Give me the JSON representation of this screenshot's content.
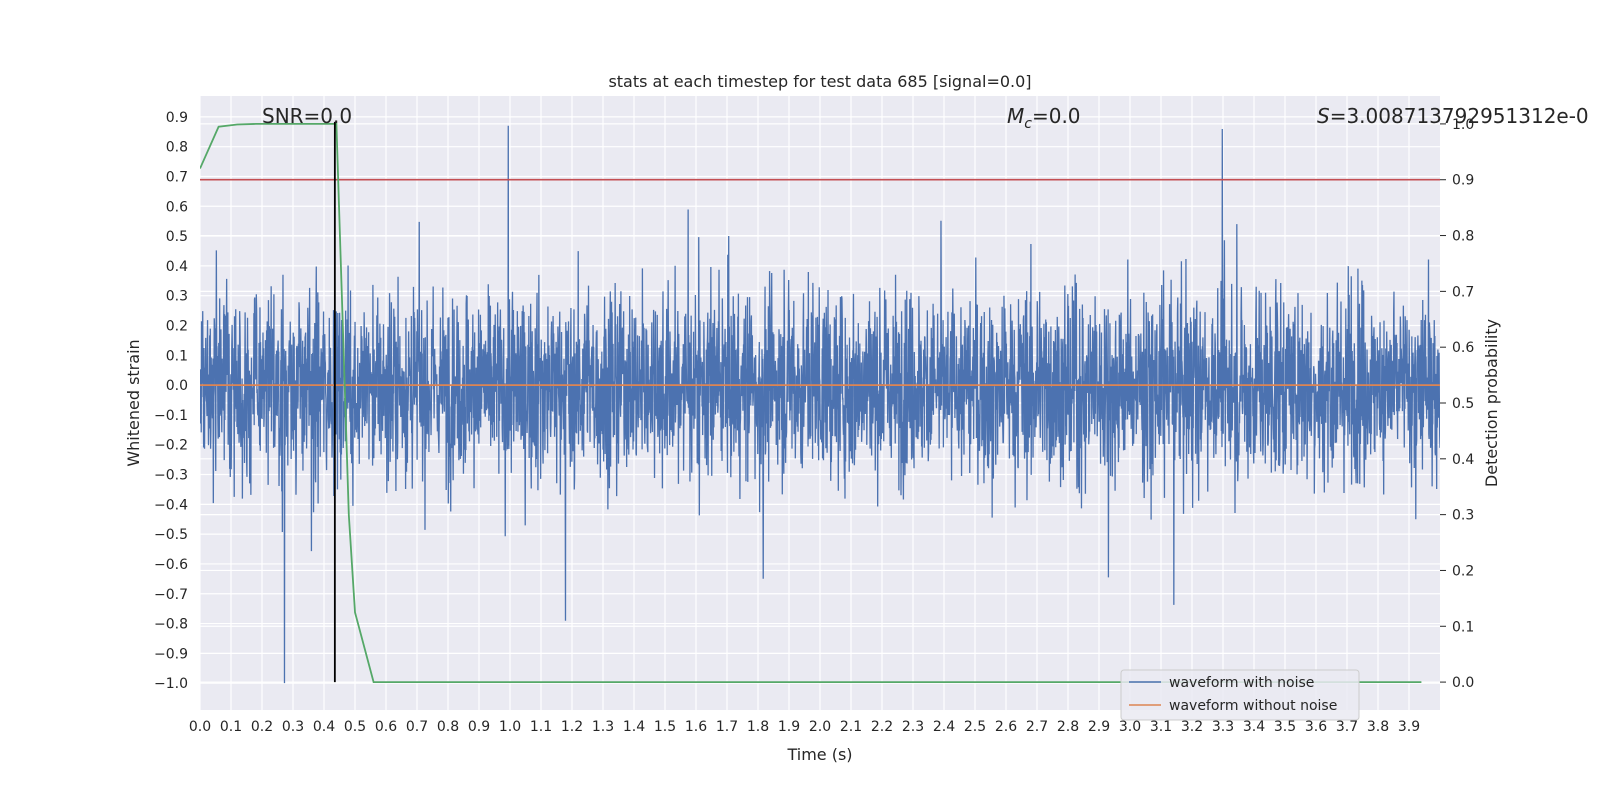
{
  "chart_data": {
    "type": "line",
    "title": "stats at each timestep for test data 685 [signal=0.0]",
    "xlabel": "Time (s)",
    "ylabel": "Whitened strain",
    "y2label": "Detection probability",
    "xlim": [
      0.0,
      4.0
    ],
    "ylim": [
      -1.09,
      0.97
    ],
    "y2lim": [
      -0.05,
      1.05
    ],
    "x_ticks": [
      "0.0",
      "0.1",
      "0.2",
      "0.3",
      "0.4",
      "0.5",
      "0.6",
      "0.7",
      "0.8",
      "0.9",
      "1.0",
      "1.1",
      "1.2",
      "1.3",
      "1.4",
      "1.5",
      "1.6",
      "1.7",
      "1.8",
      "1.9",
      "2.0",
      "2.1",
      "2.2",
      "2.3",
      "2.4",
      "2.5",
      "2.6",
      "2.7",
      "2.8",
      "2.9",
      "3.0",
      "3.1",
      "3.2",
      "3.3",
      "3.4",
      "3.5",
      "3.6",
      "3.7",
      "3.8",
      "3.9"
    ],
    "y_ticks": [
      "0.9",
      "0.8",
      "0.7",
      "0.6",
      "0.5",
      "0.4",
      "0.3",
      "0.2",
      "0.1",
      "0.0",
      "−0.1",
      "−0.2",
      "−0.3",
      "−0.4",
      "−0.5",
      "−0.6",
      "−0.7",
      "−0.8",
      "−0.9",
      "−1.0"
    ],
    "y2_ticks": [
      "1.0",
      "0.9",
      "0.8",
      "0.7",
      "0.6",
      "0.5",
      "0.4",
      "0.3",
      "0.2",
      "0.1",
      "0.0"
    ],
    "series": [
      {
        "name": "waveform with noise",
        "color": "#4c72b0",
        "kind": "noise",
        "amplitude_range": [
          -1.0,
          0.87
        ]
      },
      {
        "name": "waveform without noise",
        "color": "#dd8452",
        "x": [
          0.0,
          4.0
        ],
        "values": [
          0.0,
          0.0
        ]
      },
      {
        "name": "detection probability",
        "color": "#55a868",
        "axis": "right",
        "x": [
          0.0,
          0.06,
          0.12,
          0.18,
          0.24,
          0.3,
          0.36,
          0.42,
          0.44,
          0.48,
          0.5,
          0.56,
          0.62,
          1.0,
          2.0,
          3.0,
          3.94
        ],
        "values": [
          0.92,
          0.995,
          0.999,
          1.0,
          1.0,
          1.0,
          1.0,
          1.0,
          1.0,
          0.3,
          0.125,
          0.0,
          0.0,
          0.0,
          0.0,
          0.0,
          0.0
        ]
      }
    ],
    "threshold": {
      "axis": "right",
      "value": 0.9,
      "color": "#c44e52"
    },
    "vline": {
      "x": 0.435,
      "color": "#000000"
    },
    "annotations": [
      {
        "id": "snr",
        "text": "SNR=0.0"
      },
      {
        "id": "mc",
        "text": "=0.0",
        "symbol": "M",
        "subscript": "c"
      },
      {
        "id": "s",
        "text": "=3.008713792951312e-0",
        "symbol": "S"
      }
    ],
    "legend": {
      "position": "lower-right",
      "entries": [
        "waveform with noise",
        "waveform without noise"
      ]
    },
    "grid": true,
    "background": "#eaeaf2"
  }
}
